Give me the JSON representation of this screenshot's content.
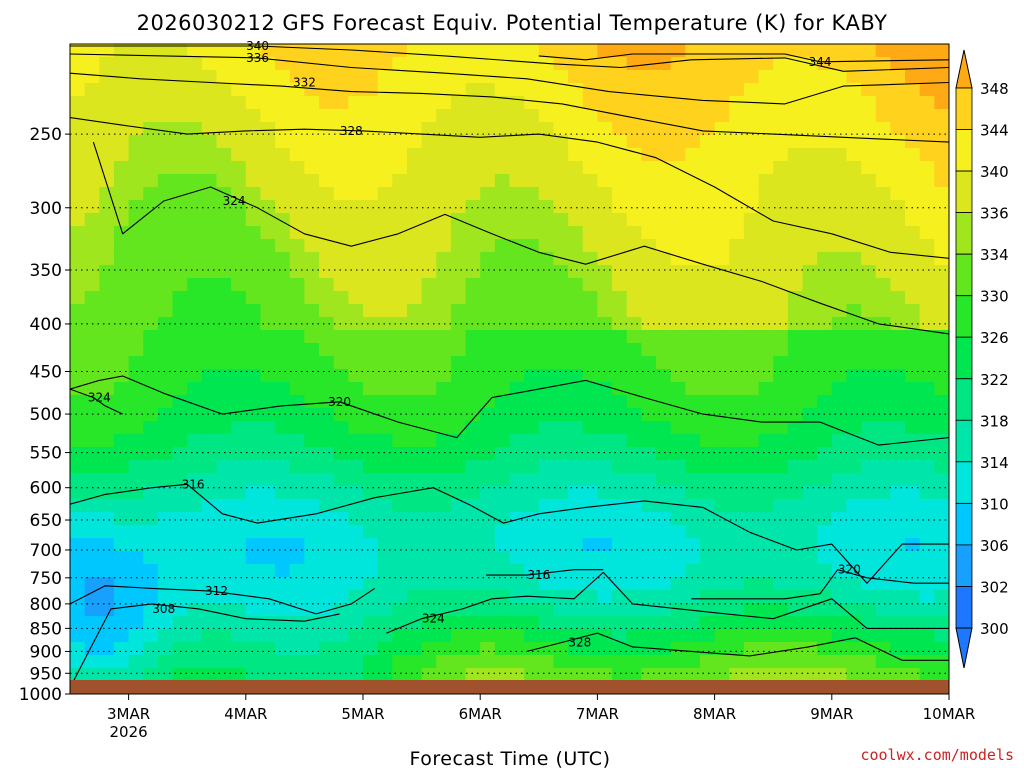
{
  "chart_data": {
    "type": "heatmap",
    "title": "2026030212 GFS Forecast Equiv. Potential Temperature (K) for KABY",
    "xlabel": "Forecast Time (UTC)",
    "ylabel": "",
    "y_scale": "log-pressure (inverted)",
    "y_unit": "hPa",
    "ylim": [
      1000,
      200
    ],
    "y_ticks": [
      {
        "value": 250,
        "label": "250"
      },
      {
        "value": 300,
        "label": "300"
      },
      {
        "value": 350,
        "label": "350"
      },
      {
        "value": 400,
        "label": "400"
      },
      {
        "value": 450,
        "label": "450"
      },
      {
        "value": 500,
        "label": "500"
      },
      {
        "value": 550,
        "label": "550"
      },
      {
        "value": 600,
        "label": "600"
      },
      {
        "value": 650,
        "label": "650"
      },
      {
        "value": 700,
        "label": "700"
      },
      {
        "value": 750,
        "label": "750"
      },
      {
        "value": 800,
        "label": "800"
      },
      {
        "value": 850,
        "label": "850"
      },
      {
        "value": 900,
        "label": "900"
      },
      {
        "value": 950,
        "label": "950"
      },
      {
        "value": 1000,
        "label": "1000"
      }
    ],
    "x_unit": "days from 2026-03-02 12Z",
    "xlim": [
      0,
      7.5
    ],
    "x_ticks": [
      {
        "value": 0.5,
        "label": "3MAR",
        "sublabel": "2026"
      },
      {
        "value": 1.5,
        "label": "4MAR",
        "sublabel": ""
      },
      {
        "value": 2.5,
        "label": "5MAR",
        "sublabel": ""
      },
      {
        "value": 3.5,
        "label": "6MAR",
        "sublabel": ""
      },
      {
        "value": 4.5,
        "label": "7MAR",
        "sublabel": ""
      },
      {
        "value": 5.5,
        "label": "8MAR",
        "sublabel": ""
      },
      {
        "value": 6.5,
        "label": "9MAR",
        "sublabel": ""
      },
      {
        "value": 7.5,
        "label": "10MAR",
        "sublabel": ""
      }
    ],
    "colorbar": {
      "levels": [
        300,
        302,
        306,
        310,
        314,
        318,
        322,
        326,
        330,
        334,
        336,
        340,
        344,
        348
      ],
      "labels": [
        "300",
        "302",
        "306",
        "310",
        "314",
        "318",
        "322",
        "326",
        "330",
        "334",
        "336",
        "340",
        "344",
        "348"
      ],
      "colors": [
        "#1e78ff",
        "#18a0ff",
        "#00c8ff",
        "#00e6dc",
        "#00e6aa",
        "#00e682",
        "#00e650",
        "#28e628",
        "#64e61e",
        "#a0e61e",
        "#dce61e",
        "#f5f01e",
        "#ffd21e",
        "#ffaa14"
      ]
    },
    "x": [
      0,
      0.25,
      0.5,
      0.75,
      1,
      1.25,
      1.5,
      1.75,
      2,
      2.25,
      2.5,
      2.75,
      3,
      3.25,
      3.5,
      3.75,
      4,
      4.25,
      4.5,
      4.75,
      5,
      5.25,
      5.5,
      5.75,
      6,
      6.25,
      6.5,
      6.75,
      7,
      7.25,
      7.5
    ],
    "contours": [
      {
        "level": 308,
        "label": "308",
        "label_at": [
          0.8,
          810
        ],
        "points": [
          [
            0,
            985
          ],
          [
            0.15,
            905
          ],
          [
            0.35,
            810
          ],
          [
            0.7,
            800
          ],
          [
            1.1,
            810
          ],
          [
            1.5,
            830
          ],
          [
            2.0,
            835
          ],
          [
            2.3,
            820
          ]
        ]
      },
      {
        "level": 312,
        "label": "312",
        "label_at": [
          1.25,
          775
        ],
        "points": [
          [
            0,
            800
          ],
          [
            0.3,
            765
          ],
          [
            0.7,
            770
          ],
          [
            1.2,
            775
          ],
          [
            1.7,
            790
          ],
          [
            2.1,
            820
          ],
          [
            2.4,
            800
          ],
          [
            2.6,
            770
          ]
        ]
      },
      {
        "level": 316,
        "label": "316",
        "label_at": [
          1.05,
          595
        ],
        "points": [
          [
            0,
            625
          ],
          [
            0.3,
            610
          ],
          [
            0.7,
            600
          ],
          [
            1.0,
            595
          ],
          [
            1.3,
            640
          ],
          [
            1.6,
            655
          ],
          [
            2.1,
            640
          ],
          [
            2.6,
            615
          ],
          [
            3.1,
            600
          ],
          [
            3.4,
            625
          ],
          [
            3.7,
            655
          ],
          [
            4.0,
            640
          ],
          [
            4.4,
            630
          ],
          [
            4.9,
            620
          ],
          [
            5.4,
            630
          ],
          [
            5.8,
            670
          ],
          [
            6.2,
            700
          ],
          [
            6.5,
            690
          ],
          [
            6.8,
            760
          ],
          [
            7.1,
            690
          ],
          [
            7.5,
            690
          ]
        ]
      },
      {
        "level": 316,
        "label": "316",
        "label_at": [
          4.0,
          745
        ],
        "points": [
          [
            3.55,
            745
          ],
          [
            3.9,
            745
          ],
          [
            4.3,
            735
          ],
          [
            4.55,
            735
          ]
        ]
      },
      {
        "level": 320,
        "label": "320",
        "label_at": [
          2.3,
          485
        ],
        "points": [
          [
            0,
            470
          ],
          [
            0.25,
            460
          ],
          [
            0.45,
            455
          ],
          [
            0.8,
            475
          ],
          [
            1.3,
            500
          ],
          [
            1.8,
            490
          ],
          [
            2.3,
            485
          ],
          [
            2.8,
            510
          ],
          [
            3.3,
            530
          ],
          [
            3.6,
            480
          ],
          [
            4.0,
            470
          ],
          [
            4.4,
            460
          ],
          [
            4.9,
            480
          ],
          [
            5.4,
            500
          ],
          [
            5.9,
            510
          ],
          [
            6.4,
            510
          ],
          [
            6.9,
            540
          ],
          [
            7.5,
            530
          ]
        ]
      },
      {
        "level": 320,
        "label": "320",
        "label_at": [
          6.65,
          735
        ],
        "points": [
          [
            5.3,
            790
          ],
          [
            5.8,
            790
          ],
          [
            6.1,
            790
          ],
          [
            6.4,
            780
          ],
          [
            6.55,
            735
          ],
          [
            6.8,
            750
          ],
          [
            7.2,
            760
          ],
          [
            7.5,
            760
          ]
        ]
      },
      {
        "level": 324,
        "label": "324",
        "label_at": [
          1.4,
          295
        ],
        "points": [
          [
            0.2,
            255
          ],
          [
            0.45,
            320
          ],
          [
            0.8,
            295
          ],
          [
            1.2,
            285
          ],
          [
            1.6,
            300
          ],
          [
            2.0,
            320
          ],
          [
            2.4,
            330
          ],
          [
            2.8,
            320
          ],
          [
            3.2,
            305
          ],
          [
            3.6,
            320
          ],
          [
            4.0,
            335
          ],
          [
            4.4,
            345
          ],
          [
            4.9,
            330
          ],
          [
            5.4,
            345
          ],
          [
            5.9,
            360
          ],
          [
            6.4,
            380
          ],
          [
            6.9,
            400
          ],
          [
            7.5,
            410
          ]
        ]
      },
      {
        "level": 324,
        "label": "324",
        "label_at": [
          0.25,
          480
        ],
        "points": [
          [
            0,
            470
          ],
          [
            0.2,
            480
          ],
          [
            0.3,
            490
          ],
          [
            0.45,
            500
          ]
        ]
      },
      {
        "level": 324,
        "label": "324",
        "label_at": [
          3.1,
          830
        ],
        "points": [
          [
            2.7,
            860
          ],
          [
            3.0,
            830
          ],
          [
            3.35,
            810
          ],
          [
            3.6,
            790
          ],
          [
            3.9,
            785
          ],
          [
            4.3,
            790
          ],
          [
            4.55,
            740
          ],
          [
            4.8,
            800
          ],
          [
            5.2,
            810
          ],
          [
            5.6,
            820
          ],
          [
            6.0,
            830
          ],
          [
            6.5,
            790
          ],
          [
            6.8,
            850
          ],
          [
            7.1,
            850
          ],
          [
            7.5,
            850
          ]
        ]
      },
      {
        "level": 328,
        "label": "328",
        "label_at": [
          2.4,
          248
        ],
        "points": [
          [
            0,
            240
          ],
          [
            0.5,
            245
          ],
          [
            1.0,
            250
          ],
          [
            1.5,
            248
          ],
          [
            2.0,
            247
          ],
          [
            2.5,
            248
          ],
          [
            3.0,
            250
          ],
          [
            3.5,
            252
          ],
          [
            4.0,
            250
          ],
          [
            4.5,
            255
          ],
          [
            5.0,
            265
          ],
          [
            5.5,
            285
          ],
          [
            6.0,
            310
          ],
          [
            6.5,
            320
          ],
          [
            7.0,
            335
          ],
          [
            7.5,
            340
          ]
        ]
      },
      {
        "level": 328,
        "label": "328",
        "label_at": [
          4.35,
          880
        ],
        "points": [
          [
            3.9,
            900
          ],
          [
            4.2,
            880
          ],
          [
            4.5,
            860
          ],
          [
            4.8,
            890
          ],
          [
            5.3,
            900
          ],
          [
            5.8,
            910
          ],
          [
            6.3,
            890
          ],
          [
            6.7,
            870
          ],
          [
            7.1,
            920
          ],
          [
            7.5,
            920
          ]
        ]
      },
      {
        "level": 332,
        "label": "332",
        "label_at": [
          2.0,
          220
        ],
        "points": [
          [
            0,
            215
          ],
          [
            0.6,
            218
          ],
          [
            1.2,
            220
          ],
          [
            1.8,
            222
          ],
          [
            2.4,
            225
          ],
          [
            3.0,
            226
          ],
          [
            3.6,
            228
          ],
          [
            4.2,
            232
          ],
          [
            4.8,
            240
          ],
          [
            5.4,
            248
          ],
          [
            6.0,
            250
          ],
          [
            6.6,
            252
          ],
          [
            7.5,
            255
          ]
        ]
      },
      {
        "level": 336,
        "label": "336",
        "label_at": [
          1.6,
          207
        ],
        "points": [
          [
            0,
            205
          ],
          [
            0.8,
            206
          ],
          [
            1.6,
            207
          ],
          [
            2.4,
            212
          ],
          [
            3.2,
            215
          ],
          [
            3.9,
            218
          ],
          [
            4.6,
            225
          ],
          [
            5.4,
            230
          ],
          [
            6.1,
            232
          ],
          [
            6.6,
            222
          ],
          [
            7.5,
            220
          ]
        ]
      },
      {
        "level": 340,
        "label": "340",
        "label_at": [
          1.6,
          201
        ],
        "points": [
          [
            0,
            201
          ],
          [
            1.0,
            201
          ],
          [
            1.6,
            201
          ],
          [
            2.4,
            203
          ],
          [
            3.2,
            206
          ],
          [
            4.1,
            210
          ],
          [
            4.7,
            212
          ],
          [
            5.3,
            208
          ],
          [
            6.1,
            207
          ],
          [
            6.6,
            214
          ],
          [
            7.5,
            212
          ]
        ]
      },
      {
        "level": 344,
        "label": "344",
        "label_at": [
          6.4,
          209
        ],
        "points": [
          [
            4.0,
            206
          ],
          [
            4.4,
            208
          ],
          [
            4.8,
            205
          ],
          [
            5.5,
            205
          ],
          [
            6.1,
            205
          ],
          [
            6.4,
            209
          ],
          [
            7.5,
            208
          ]
        ]
      }
    ],
    "grid": true,
    "legend": "colorbar-right"
  },
  "credit": "coolwx.com/models"
}
